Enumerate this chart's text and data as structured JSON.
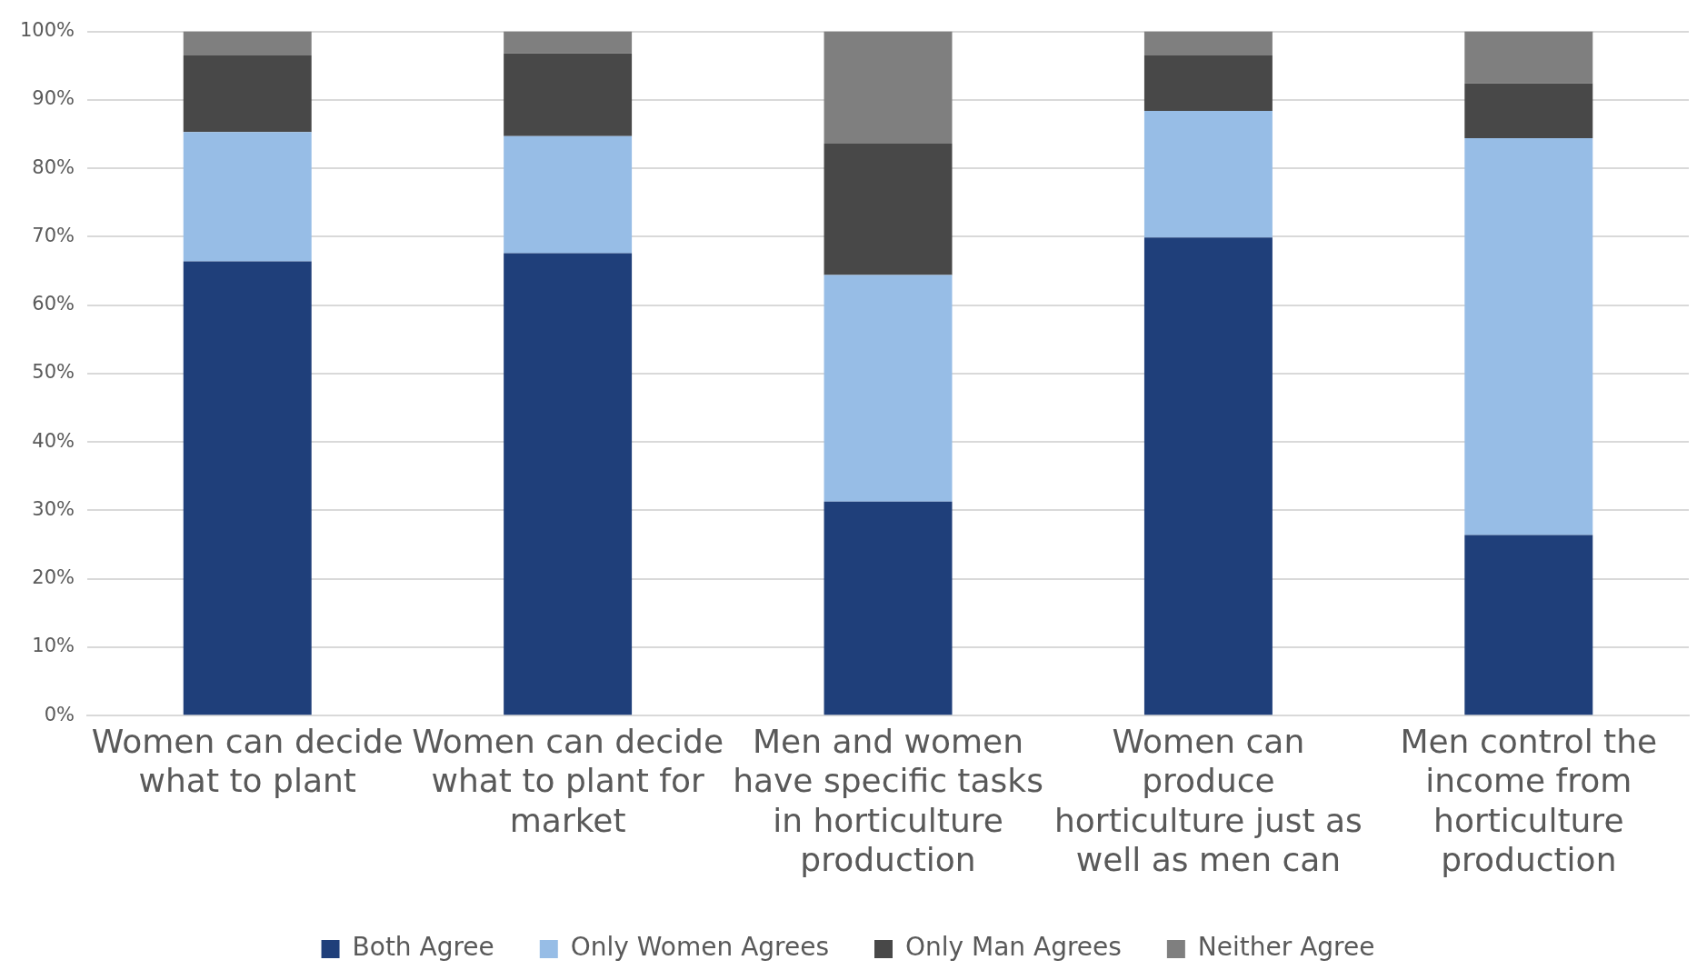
{
  "chart_data": {
    "type": "bar",
    "stacked": true,
    "categories": [
      "Women can decide what to plant",
      "Women can decide what to plant for market",
      "Men and women have specific tasks in horticulture production",
      "Women can produce horticulture just as well as men can",
      "Men control the income from horticulture production"
    ],
    "series": [
      {
        "name": "Both Agree",
        "color": "#1f3f7a",
        "values": [
          66.4,
          67.6,
          31.3,
          69.9,
          26.4
        ]
      },
      {
        "name": "Only Women Agrees",
        "color": "#97bde6",
        "values": [
          18.9,
          17.1,
          33.1,
          18.5,
          58.0
        ]
      },
      {
        "name": "Only Man Agrees",
        "color": "#484848",
        "values": [
          11.2,
          12.1,
          19.2,
          8.1,
          8.0
        ]
      },
      {
        "name": "Neither Agree",
        "color": "#7f7f7f",
        "values": [
          3.5,
          3.2,
          16.4,
          3.5,
          7.6
        ]
      }
    ],
    "ylim": [
      0,
      100
    ],
    "yticks": [
      {
        "value": 0,
        "label": "0%"
      },
      {
        "value": 10,
        "label": "10%"
      },
      {
        "value": 20,
        "label": "20%"
      },
      {
        "value": 30,
        "label": "30%"
      },
      {
        "value": 40,
        "label": "40%"
      },
      {
        "value": 50,
        "label": "50%"
      },
      {
        "value": 60,
        "label": "60%"
      },
      {
        "value": 70,
        "label": "70%"
      },
      {
        "value": 80,
        "label": "80%"
      },
      {
        "value": 90,
        "label": "90%"
      },
      {
        "value": 100,
        "label": "100%"
      }
    ],
    "grid": "y",
    "legend": "bottom"
  }
}
